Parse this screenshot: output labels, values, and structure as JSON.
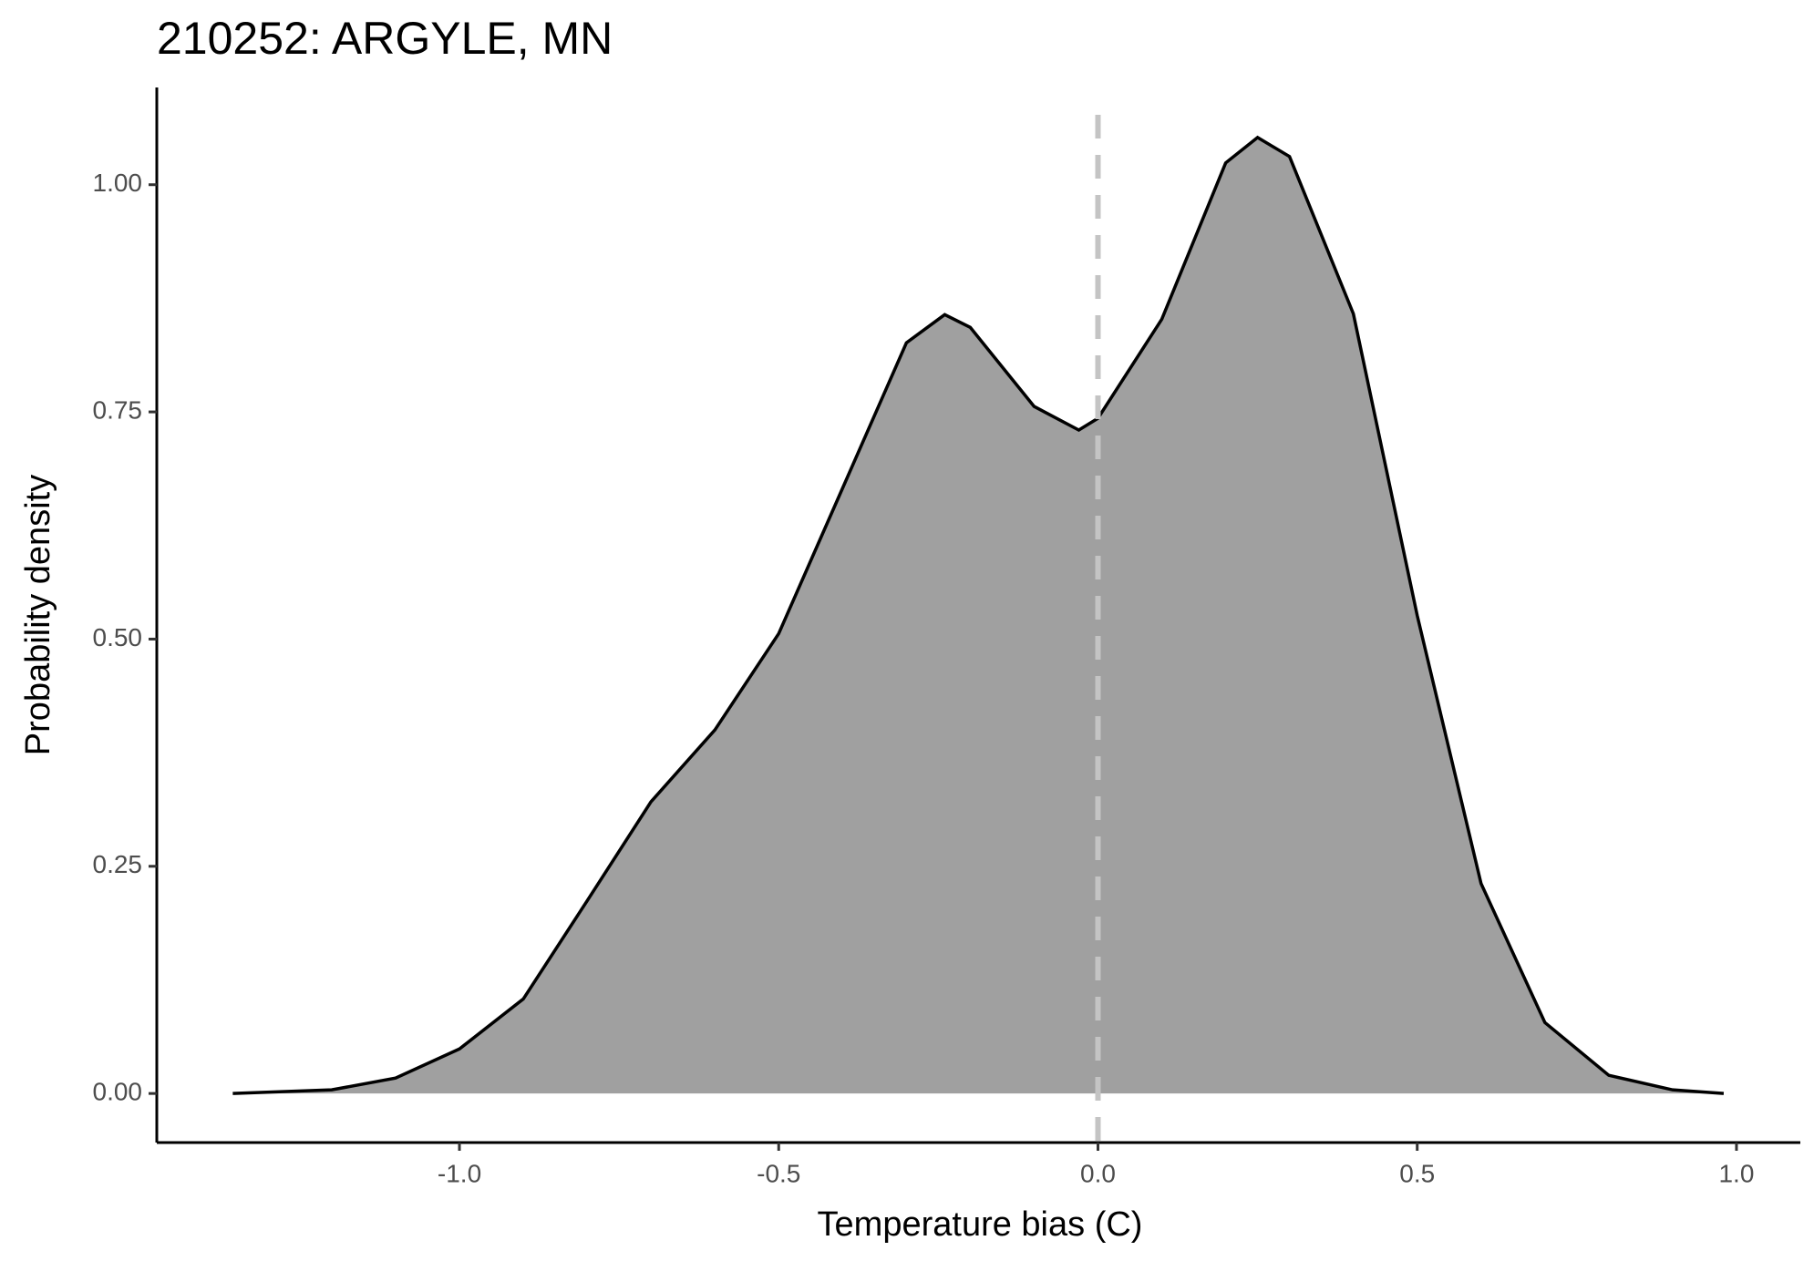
{
  "chart_data": {
    "type": "density",
    "title": "210252: ARGYLE, MN",
    "x_label": "Temperature bias (C)",
    "y_label": "Probability density",
    "x": [
      -1.355,
      -1.2,
      -1.1,
      -1.0,
      -0.9,
      -0.8,
      -0.7,
      -0.6,
      -0.5,
      -0.4,
      -0.3,
      -0.24,
      -0.2,
      -0.1,
      -0.03,
      0.0,
      0.1,
      0.2,
      0.25,
      0.3,
      0.4,
      0.5,
      0.6,
      0.7,
      0.8,
      0.9,
      0.98
    ],
    "values": [
      0.0,
      0.004,
      0.017,
      0.049,
      0.104,
      0.212,
      0.321,
      0.4,
      0.506,
      0.666,
      0.826,
      0.857,
      0.843,
      0.756,
      0.73,
      0.743,
      0.852,
      1.024,
      1.052,
      1.031,
      0.858,
      0.526,
      0.231,
      0.078,
      0.02,
      0.004,
      0.0
    ],
    "color": "#a0a0a0",
    "line_color": "#000000",
    "reference_line": 0,
    "reference_color": "#c4c4c4",
    "xlim": [
      -1.474,
      1.1
    ],
    "ylim": [
      -0.054,
      1.107
    ],
    "xticks": [
      {
        "value": -1.0,
        "label": "-1.0"
      },
      {
        "value": -0.5,
        "label": "-0.5"
      },
      {
        "value": 0.0,
        "label": "0.0"
      },
      {
        "value": 0.5,
        "label": "0.5"
      },
      {
        "value": 1.0,
        "label": "1.0"
      }
    ],
    "yticks": [
      {
        "value": 0.0,
        "label": "0.00"
      },
      {
        "value": 0.25,
        "label": "0.25"
      },
      {
        "value": 0.5,
        "label": "0.50"
      },
      {
        "value": 0.75,
        "label": "0.75"
      },
      {
        "value": 1.0,
        "label": "1.00"
      }
    ],
    "grid": false
  }
}
